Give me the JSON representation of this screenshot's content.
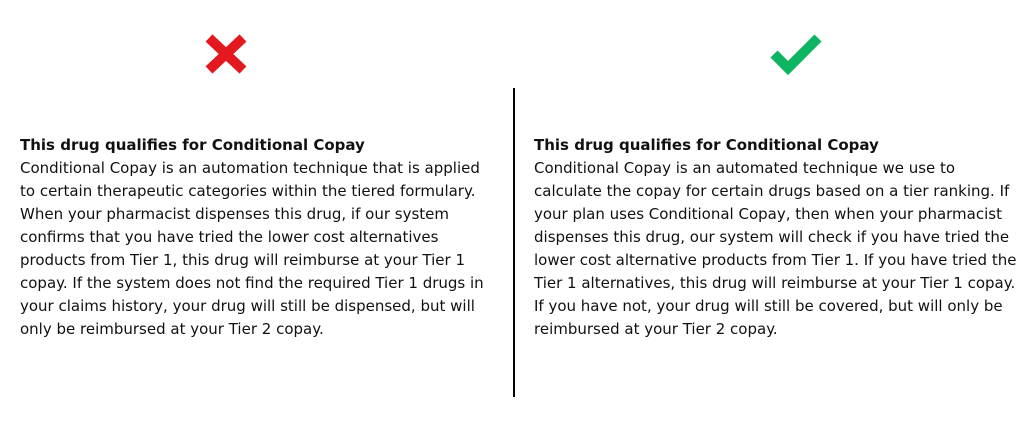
{
  "colors": {
    "incorrect": "#e3191f",
    "correct": "#0db562",
    "text": "#111111",
    "divider": "#000000"
  },
  "left_panel": {
    "icon": "cross-icon",
    "heading": "This drug qualifies for Conditional Copay",
    "body": "Conditional Copay is an automation technique that is applied to certain therapeutic categories within the tiered formulary. When your pharmacist dispenses this drug, if our system confirms that you have tried the lower cost alternatives products from Tier 1, this drug will reimburse at your Tier 1 copay. If the system does not find the required Tier 1 drugs in your claims history, your drug will still be dispensed, but will only be reimbursed at your Tier 2 copay."
  },
  "right_panel": {
    "icon": "checkmark-icon",
    "heading": "This drug qualifies for Conditional Copay",
    "body": "Conditional Copay is an automated technique we use to calculate the copay for certain drugs based on a tier ranking. If your plan uses Conditional Copay, then when your pharmacist dispenses this drug, our system will check if you have tried the lower cost alternative products from Tier 1. If you have tried the Tier 1 alternatives, this drug will reimburse at your Tier 1 copay. If you have not, your drug will still be covered, but will only be reimbursed at your Tier 2 copay."
  }
}
